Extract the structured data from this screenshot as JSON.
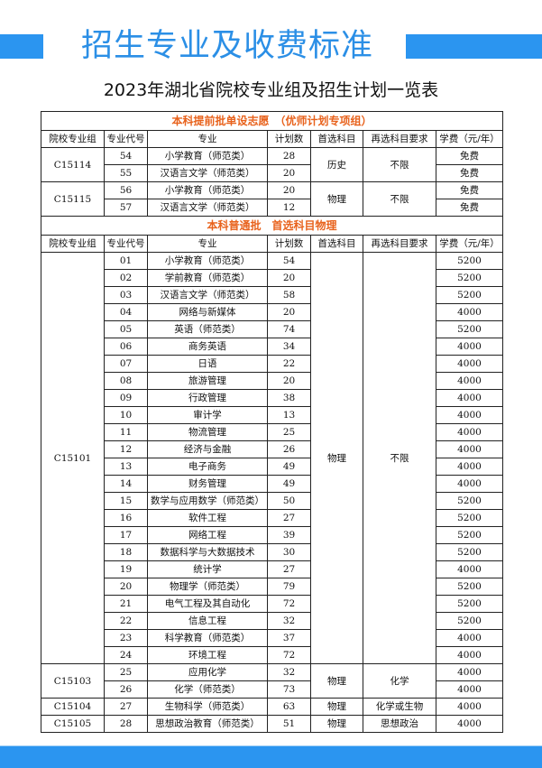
{
  "colors": {
    "accent": "#2b95f0",
    "title": "#2b8fe6",
    "section": "#e8621c"
  },
  "title": "招生专业及收费标准",
  "subtitle": "2023年湖北省院校专业组及招生计划一览表",
  "columns": [
    "院校专业组",
    "专业代号",
    "专业",
    "计划数",
    "首选科目",
    "再选科目要求",
    "学费（元/年）"
  ],
  "sections": [
    {
      "title": "本科提前批单设志愿　（优师计划专项组）",
      "groups": [
        {
          "group": "C15114",
          "first": "历史",
          "second": "不限",
          "rows": [
            {
              "code": "54",
              "major": "小学教育（师范类）",
              "plan": "28",
              "fee": "免费"
            },
            {
              "code": "55",
              "major": "汉语言文学（师范类）",
              "plan": "20",
              "fee": "免费"
            }
          ]
        },
        {
          "group": "C15115",
          "first": "物理",
          "second": "不限",
          "rows": [
            {
              "code": "56",
              "major": "小学教育（师范类）",
              "plan": "20",
              "fee": "免费"
            },
            {
              "code": "57",
              "major": "汉语言文学（师范类）",
              "plan": "12",
              "fee": "免费"
            }
          ]
        }
      ]
    },
    {
      "title": "本科普通批　首选科目物理",
      "groups": [
        {
          "group": "C15101",
          "first": "物理",
          "second": "不限",
          "rows": [
            {
              "code": "01",
              "major": "小学教育（师范类）",
              "plan": "54",
              "fee": "5200"
            },
            {
              "code": "02",
              "major": "学前教育（师范类）",
              "plan": "20",
              "fee": "5200"
            },
            {
              "code": "03",
              "major": "汉语言文学（师范类）",
              "plan": "58",
              "fee": "5200"
            },
            {
              "code": "04",
              "major": "网络与新媒体",
              "plan": "20",
              "fee": "4000"
            },
            {
              "code": "05",
              "major": "英语（师范类）",
              "plan": "74",
              "fee": "5200"
            },
            {
              "code": "06",
              "major": "商务英语",
              "plan": "34",
              "fee": "4000"
            },
            {
              "code": "07",
              "major": "日语",
              "plan": "22",
              "fee": "4000"
            },
            {
              "code": "08",
              "major": "旅游管理",
              "plan": "20",
              "fee": "4000"
            },
            {
              "code": "09",
              "major": "行政管理",
              "plan": "38",
              "fee": "4000"
            },
            {
              "code": "10",
              "major": "审计学",
              "plan": "13",
              "fee": "4000"
            },
            {
              "code": "11",
              "major": "物流管理",
              "plan": "25",
              "fee": "4000"
            },
            {
              "code": "12",
              "major": "经济与金融",
              "plan": "26",
              "fee": "4000"
            },
            {
              "code": "13",
              "major": "电子商务",
              "plan": "49",
              "fee": "4000"
            },
            {
              "code": "14",
              "major": "财务管理",
              "plan": "49",
              "fee": "4000"
            },
            {
              "code": "15",
              "major": "数学与应用数学（师范类）",
              "plan": "50",
              "fee": "5200"
            },
            {
              "code": "16",
              "major": "软件工程",
              "plan": "27",
              "fee": "5200"
            },
            {
              "code": "17",
              "major": "网络工程",
              "plan": "39",
              "fee": "5200"
            },
            {
              "code": "18",
              "major": "数据科学与大数据技术",
              "plan": "30",
              "fee": "5200"
            },
            {
              "code": "19",
              "major": "统计学",
              "plan": "27",
              "fee": "4000"
            },
            {
              "code": "20",
              "major": "物理学（师范类）",
              "plan": "79",
              "fee": "5200"
            },
            {
              "code": "21",
              "major": "电气工程及其自动化",
              "plan": "72",
              "fee": "5200"
            },
            {
              "code": "22",
              "major": "信息工程",
              "plan": "32",
              "fee": "5200"
            },
            {
              "code": "23",
              "major": "科学教育（师范类）",
              "plan": "37",
              "fee": "4000"
            },
            {
              "code": "24",
              "major": "环境工程",
              "plan": "72",
              "fee": "4000"
            }
          ]
        },
        {
          "group": "C15103",
          "first": "物理",
          "second": "化学",
          "rows": [
            {
              "code": "25",
              "major": "应用化学",
              "plan": "32",
              "fee": "4000"
            },
            {
              "code": "26",
              "major": "化学（师范类）",
              "plan": "73",
              "fee": "4000"
            }
          ]
        },
        {
          "group": "C15104",
          "first": "物理",
          "second": "化学或生物",
          "rows": [
            {
              "code": "27",
              "major": "生物科学（师范类）",
              "plan": "63",
              "fee": "4000"
            }
          ]
        },
        {
          "group": "C15105",
          "first": "物理",
          "second": "思想政治",
          "rows": [
            {
              "code": "28",
              "major": "思想政治教育（师范类）",
              "plan": "51",
              "fee": "4000"
            }
          ]
        }
      ]
    }
  ]
}
